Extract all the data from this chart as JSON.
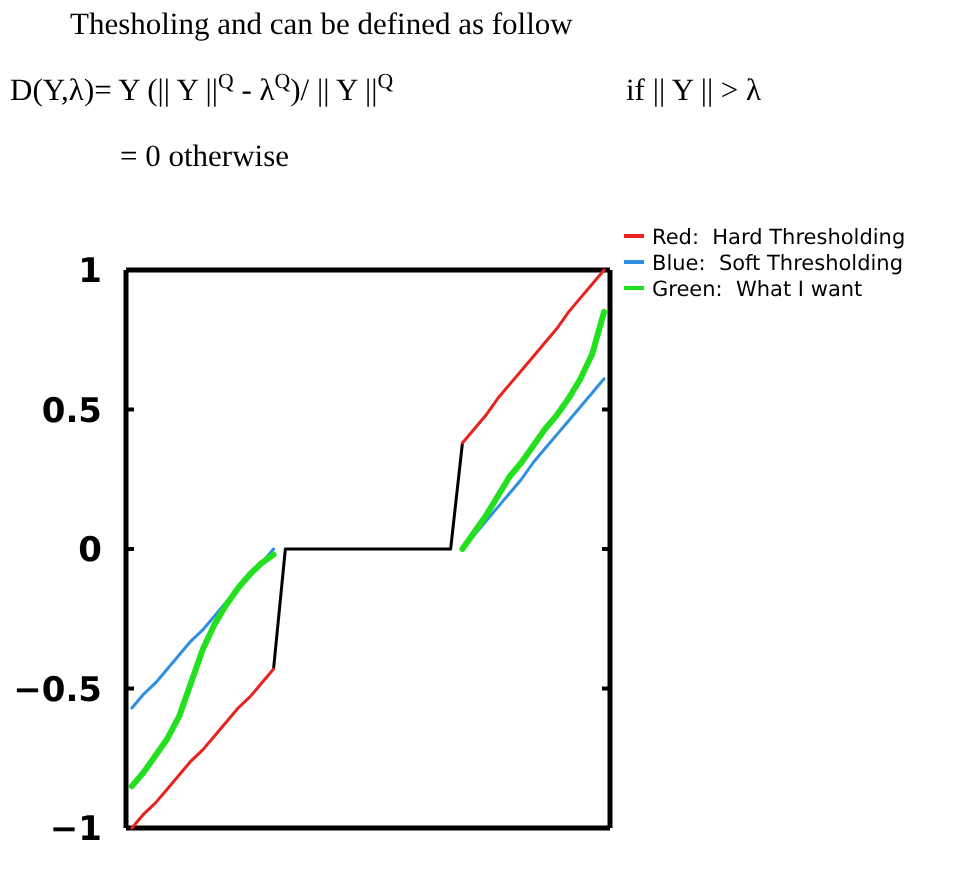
{
  "chart_data": {
    "type": "line",
    "title": "Thesholing and can be defined as follow",
    "annotations": [
      "D(Y,λ)= Y (|| Y ||$^{Q}$ - λ$^{Q}$)/ || Y ||$^{Q}$",
      "if || Y || > λ",
      "= 0 otherwise"
    ],
    "categories": [
      null,
      null,
      null,
      null,
      null,
      null,
      null,
      null,
      null,
      null,
      null,
      null,
      null,
      null,
      null,
      null,
      null,
      null,
      null,
      null,
      null,
      null,
      null,
      null,
      null,
      null,
      null,
      null,
      null,
      null,
      null,
      null,
      null,
      null,
      null,
      null,
      null,
      null,
      null,
      null,
      null
    ],
    "ylim": [
      -1,
      1
    ],
    "yticks": [
      {
        "value": -1,
        "label": "−1"
      },
      {
        "value": -0.5,
        "label": "−0.5"
      },
      0,
      0.5,
      1
    ],
    "grid": false,
    "legend": "top right",
    "marker": "none",
    "line_style": "solid",
    "series": [
      {
        "color": "#000000",
        "values": [
          null,
          null,
          null,
          null,
          null,
          null,
          null,
          null,
          null,
          null,
          null,
          null,
          -0.43,
          0,
          0,
          0,
          0,
          0,
          0,
          0,
          0,
          0,
          0,
          0,
          0,
          0,
          0,
          0,
          0.38,
          null,
          null,
          null,
          null,
          null,
          null,
          null,
          null,
          null,
          null,
          null,
          null
        ]
      },
      {
        "name": "Red:  Hard Thresholding",
        "color": "#e8231e",
        "values": [
          -1,
          -0.95,
          -0.91,
          -0.86,
          -0.81,
          -0.76,
          -0.72,
          -0.67,
          -0.62,
          -0.57,
          -0.53,
          -0.48,
          -0.43,
          null,
          null,
          null,
          null,
          null,
          null,
          null,
          null,
          null,
          null,
          null,
          null,
          null,
          null,
          null,
          0.38,
          0.43,
          0.48,
          0.54,
          0.59,
          0.64,
          0.69,
          0.74,
          0.79,
          0.85,
          0.9,
          0.95,
          1
        ]
      },
      {
        "name": "Blue:  Soft Thresholding",
        "color": "#2f8fe0",
        "values": [
          -0.57,
          -0.52,
          -0.48,
          -0.43,
          -0.38,
          -0.33,
          -0.29,
          -0.24,
          -0.19,
          -0.14,
          -0.1,
          -0.05,
          0,
          null,
          null,
          null,
          null,
          null,
          null,
          null,
          null,
          null,
          null,
          null,
          null,
          null,
          null,
          null,
          0,
          0.05,
          0.1,
          0.15,
          0.2,
          0.25,
          0.31,
          0.36,
          0.41,
          0.46,
          0.51,
          0.56,
          0.61
        ]
      },
      {
        "name": "Green:  What I want",
        "color": "#22e01e",
        "values": [
          -0.85,
          -0.8,
          -0.74,
          -0.68,
          -0.6,
          -0.48,
          -0.36,
          -0.27,
          -0.2,
          -0.14,
          -0.09,
          -0.05,
          -0.02,
          null,
          null,
          null,
          null,
          null,
          null,
          null,
          null,
          null,
          null,
          null,
          null,
          null,
          null,
          null,
          0,
          0.06,
          0.12,
          0.19,
          0.26,
          0.31,
          0.37,
          0.43,
          0.48,
          0.54,
          0.61,
          0.7,
          0.85
        ]
      }
    ]
  }
}
